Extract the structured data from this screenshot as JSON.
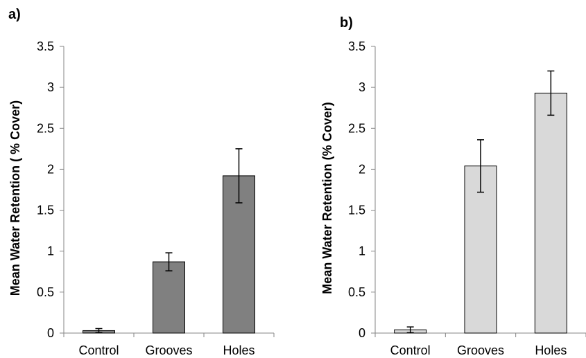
{
  "chart_data": [
    {
      "panel_label": "a)",
      "type": "bar",
      "categories": [
        "Control",
        "Grooves",
        "Holes"
      ],
      "values": [
        0.03,
        0.87,
        1.92
      ],
      "errors": [
        0.025,
        0.11,
        0.33
      ],
      "ylabel": "Mean Water Retention ( % Cover)",
      "ylim": [
        0,
        3.5
      ],
      "yticks": [
        "0",
        "0.5",
        "1",
        "1.5",
        "2",
        "2.5",
        "3",
        "3.5"
      ],
      "bar_color": "#808080",
      "grid": false
    },
    {
      "panel_label": "b)",
      "type": "bar",
      "categories": [
        "Control",
        "Grooves",
        "Holes"
      ],
      "values": [
        0.04,
        2.04,
        2.93
      ],
      "errors": [
        0.035,
        0.32,
        0.27
      ],
      "ylabel": "Mean Water Retention (% Cover)",
      "ylim": [
        0,
        3.5
      ],
      "yticks": [
        "0",
        "0.5",
        "1",
        "1.5",
        "2",
        "2.5",
        "3",
        "3.5"
      ],
      "bar_color": "#d9d9d9",
      "grid": false
    }
  ]
}
